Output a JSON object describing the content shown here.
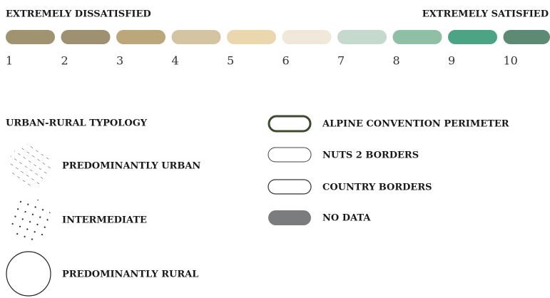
{
  "scale": {
    "left_label": "EXTREMELY DISSATISFIED",
    "right_label": "EXTREMELY SATISFIED",
    "steps": [
      {
        "label": 1,
        "color": "#a0936f"
      },
      {
        "label": 2,
        "color": "#9d9172"
      },
      {
        "label": 3,
        "color": "#bba77a"
      },
      {
        "label": 4,
        "color": "#d4c4a1"
      },
      {
        "label": 5,
        "color": "#ead7ad"
      },
      {
        "label": 6,
        "color": "#f0e8da"
      },
      {
        "label": 7,
        "color": "#c6d9ce"
      },
      {
        "label": 8,
        "color": "#8fc0a5"
      },
      {
        "label": 9,
        "color": "#4ba585"
      },
      {
        "label": 10,
        "color": "#5d8a73"
      }
    ]
  },
  "typology": {
    "title": "URBAN-RURAL TYPOLOGY",
    "items": [
      "PREDOMINANTLY URBAN",
      "INTERMEDIATE",
      "PREDOMINANTLY RURAL"
    ]
  },
  "boundaries": [
    {
      "label": "ALPINE CONVENTION PERIMETER"
    },
    {
      "label": "NUTS 2 BORDERS"
    },
    {
      "label": "COUNTRY BORDERS"
    },
    {
      "label": "NO DATA"
    }
  ]
}
